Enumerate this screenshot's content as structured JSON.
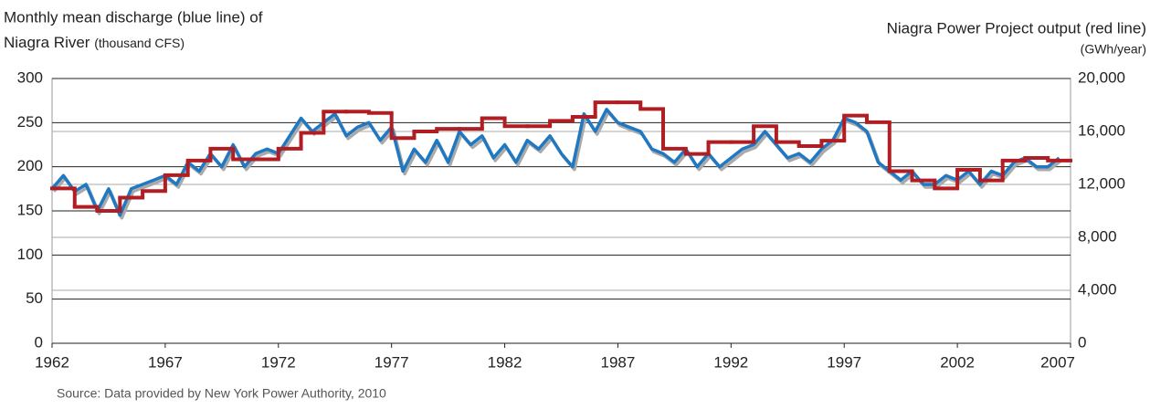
{
  "chart_data": {
    "type": "line",
    "y_label": "Monthly mean discharge (blue line) of",
    "y_label_2": "Niagra River",
    "y_unit": "(thousand CFS)",
    "y2_label": "Niagra Power Project output (red line)",
    "y2_unit": "(GWh/year)",
    "source": "Source: Data provided by New York Power Authority, 2010",
    "xlim": [
      1962,
      2007
    ],
    "xticks": [
      1962,
      1967,
      1972,
      1977,
      1982,
      1987,
      1992,
      1997,
      2002,
      2007
    ],
    "ylim": [
      0,
      300
    ],
    "yticks": [
      0,
      50,
      100,
      150,
      200,
      250,
      300
    ],
    "y2lim": [
      0,
      20000
    ],
    "y2ticks": [
      0,
      {
        "value": 4000,
        "label": "4,000"
      },
      {
        "value": 8000,
        "label": "8,000"
      },
      {
        "value": 12000,
        "label": "12,000"
      },
      {
        "value": 16000,
        "label": "16,000"
      },
      {
        "value": 20000,
        "label": "20,000"
      }
    ],
    "series": [
      {
        "color": "#1f78c1",
        "step": false,
        "x": [
          1962,
          1962.5,
          1963,
          1963.5,
          1964,
          1964.5,
          1965,
          1965.5,
          1966,
          1966.5,
          1967,
          1967.5,
          1968,
          1968.5,
          1969,
          1969.5,
          1970,
          1970.5,
          1971,
          1971.5,
          1972,
          1972.5,
          1973,
          1973.5,
          1974,
          1974.5,
          1975,
          1975.5,
          1976,
          1976.5,
          1977,
          1977.5,
          1978,
          1978.5,
          1979,
          1979.5,
          1980,
          1980.5,
          1981,
          1981.5,
          1982,
          1982.5,
          1983,
          1983.5,
          1984,
          1984.5,
          1985,
          1985.5,
          1986,
          1986.5,
          1987,
          1987.5,
          1988,
          1988.5,
          1989,
          1989.5,
          1990,
          1990.5,
          1991,
          1991.5,
          1992,
          1992.5,
          1993,
          1993.5,
          1994,
          1994.5,
          1995,
          1995.5,
          1996,
          1996.5,
          1997,
          1997.5,
          1998,
          1998.5,
          1999,
          1999.5,
          2000,
          2000.5,
          2001,
          2001.5,
          2002,
          2002.5,
          2003,
          2003.5,
          2004,
          2004.5,
          2005,
          2005.5,
          2006,
          2006.5
        ],
        "values": [
          175,
          190,
          172,
          180,
          150,
          175,
          145,
          175,
          180,
          185,
          190,
          180,
          205,
          195,
          215,
          200,
          225,
          200,
          215,
          220,
          215,
          235,
          255,
          240,
          250,
          260,
          235,
          245,
          250,
          230,
          245,
          195,
          220,
          205,
          230,
          205,
          240,
          225,
          235,
          210,
          225,
          205,
          230,
          220,
          235,
          215,
          200,
          260,
          240,
          265,
          250,
          245,
          240,
          220,
          215,
          205,
          220,
          200,
          215,
          200,
          210,
          220,
          225,
          240,
          225,
          210,
          215,
          205,
          220,
          230,
          255,
          250,
          240,
          205,
          195,
          185,
          195,
          180,
          180,
          190,
          185,
          195,
          180,
          195,
          190,
          205,
          210,
          200,
          200,
          210
        ]
      },
      {
        "color": "#b01e23",
        "axis": "y2",
        "step": true,
        "x": [
          1962,
          1963,
          1964,
          1965,
          1966,
          1967,
          1968,
          1969,
          1970,
          1971,
          1972,
          1973,
          1974,
          1975,
          1976,
          1977,
          1978,
          1979,
          1980,
          1981,
          1982,
          1983,
          1984,
          1985,
          1986,
          1987,
          1988,
          1989,
          1990,
          1991,
          1992,
          1993,
          1994,
          1995,
          1996,
          1997,
          1998,
          1999,
          2000,
          2001,
          2002,
          2003,
          2004,
          2005,
          2006
        ],
        "values": [
          11700,
          10300,
          10000,
          11000,
          11500,
          12700,
          13800,
          14700,
          13900,
          13900,
          14700,
          15900,
          17500,
          17500,
          17400,
          15500,
          16000,
          16200,
          16200,
          17000,
          16400,
          16400,
          16800,
          17100,
          18200,
          18200,
          17700,
          14700,
          14300,
          15200,
          15200,
          16400,
          15200,
          14900,
          15300,
          17200,
          16700,
          13000,
          12300,
          11700,
          13100,
          12300,
          13800,
          14000,
          13800
        ]
      }
    ]
  }
}
